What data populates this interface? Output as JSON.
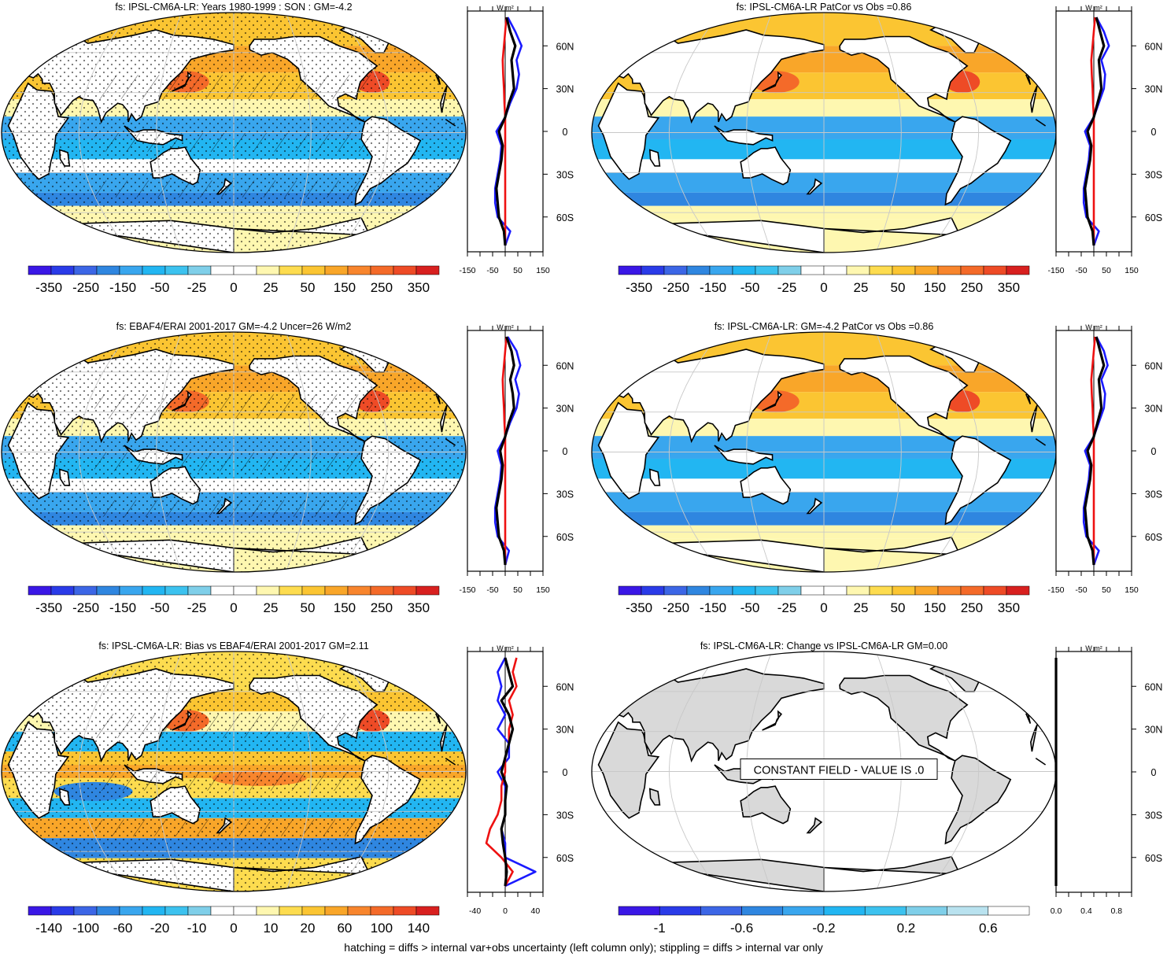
{
  "palettes": {
    "main": [
      "#3a17e6",
      "#2a3be8",
      "#3c66e6",
      "#2f86e0",
      "#39a6ee",
      "#22b6f2",
      "#3cc2ef",
      "#7fcfe9",
      "#ffffff",
      "#ffffff",
      "#fef7b0",
      "#fddc4f",
      "#fbc532",
      "#f9a629",
      "#f8852d",
      "#f46a29",
      "#ee4b26",
      "#d8201f"
    ],
    "bias": [
      "#3a17e6",
      "#2a3be8",
      "#3c66e6",
      "#2f86e0",
      "#39a6ee",
      "#22b6f2",
      "#3cc2ef",
      "#7fcfe9",
      "#ffffff",
      "#ffffff",
      "#fef7b0",
      "#fddc4f",
      "#fbc532",
      "#f9a629",
      "#f8852d",
      "#f46a29",
      "#ee4b26",
      "#d8201f"
    ],
    "change": [
      "#3a17e6",
      "#2a3be8",
      "#3c66e6",
      "#2f86e0",
      "#39a6ee",
      "#22b6f2",
      "#3cc2ef",
      "#7fcfe9",
      "#b9e2ef",
      "#ffffff"
    ],
    "land": "#d9d9d9",
    "line_black": "#000000",
    "line_blue": "#1a1aff",
    "line_red": "#ee1111"
  },
  "profile_units": "W m²",
  "footnote": "hatching = diffs > internal var+obs uncertainty (left column only); stippling = diffs > internal var only",
  "chart_data": [
    {
      "type": "heatmap",
      "title": "fs: IPSL-CM6A-LR: Years 1980-1999 : SON : GM=-4.2",
      "colorbar_labels": [
        "-350",
        "-250",
        "-150",
        "-50",
        "-25",
        "0",
        "25",
        "50",
        "150",
        "250",
        "350"
      ],
      "stippling": true,
      "hatching": true
    },
    {
      "type": "line",
      "ylabels": [
        "60N",
        "30N",
        "0",
        "30S",
        "60S"
      ],
      "y": [
        60,
        30,
        0,
        -30,
        -60
      ],
      "xlim": [
        -150,
        150
      ],
      "xticklabels": [
        "-150",
        "-50",
        "50",
        "150"
      ],
      "series": [
        {
          "color": "black",
          "lat": [
            80,
            70,
            60,
            50,
            40,
            30,
            20,
            10,
            0,
            -10,
            -20,
            -30,
            -40,
            -50,
            -60,
            -70,
            -80
          ],
          "values": [
            5,
            20,
            40,
            25,
            30,
            35,
            15,
            0,
            -25,
            -10,
            -15,
            -25,
            -35,
            -30,
            -25,
            -5,
            0
          ]
        },
        {
          "color": "blue",
          "lat": [
            80,
            70,
            60,
            50,
            40,
            30,
            20,
            10,
            0,
            -10,
            -20,
            -30,
            -40,
            -50,
            -60,
            -70,
            -80
          ],
          "values": [
            10,
            40,
            65,
            45,
            55,
            45,
            20,
            0,
            -35,
            -15,
            -20,
            -30,
            -40,
            -40,
            -30,
            20,
            0
          ]
        },
        {
          "color": "red",
          "lat": [
            80,
            70,
            60,
            50,
            40,
            30,
            20,
            10,
            0,
            -10,
            -20,
            -30,
            -40,
            -50,
            -60,
            -70,
            -80
          ],
          "values": [
            5,
            0,
            -5,
            -10,
            -8,
            -5,
            -3,
            0,
            0,
            0,
            0,
            0,
            0,
            0,
            0,
            0,
            0
          ]
        }
      ]
    },
    {
      "type": "heatmap",
      "title": "fs: IPSL-CM6A-LR PatCor vs Obs =0.86",
      "colorbar_labels": [
        "-350",
        "-250",
        "-150",
        "-50",
        "-25",
        "0",
        "25",
        "50",
        "150",
        "250",
        "350"
      ]
    },
    {
      "type": "line",
      "ylabels": [
        "60N",
        "30N",
        "0",
        "30S",
        "60S"
      ],
      "y": [
        60,
        30,
        0,
        -30,
        -60
      ],
      "xlim": [
        -150,
        150
      ],
      "xticklabels": [
        "-150",
        "-50",
        "50",
        "150"
      ],
      "series": [
        {
          "color": "black",
          "lat": [
            80,
            70,
            60,
            50,
            40,
            30,
            20,
            10,
            0,
            -10,
            -20,
            -30,
            -40,
            -50,
            -60,
            -70,
            -80
          ],
          "values": [
            10,
            25,
            40,
            20,
            25,
            30,
            15,
            0,
            -25,
            -10,
            -15,
            -25,
            -35,
            -30,
            -25,
            -5,
            0
          ]
        },
        {
          "color": "blue",
          "lat": [
            80,
            70,
            60,
            50,
            40,
            30,
            20,
            10,
            0,
            -10,
            -20,
            -30,
            -40,
            -50,
            -60,
            -70,
            -80
          ],
          "values": [
            10,
            40,
            60,
            30,
            45,
            40,
            20,
            0,
            -35,
            -15,
            -20,
            -30,
            -40,
            -40,
            -30,
            20,
            0
          ]
        },
        {
          "color": "red",
          "lat": [
            80,
            70,
            60,
            50,
            40,
            30,
            20,
            10,
            0,
            -10,
            -20,
            -30,
            -40,
            -50,
            -60,
            -70,
            -80
          ],
          "values": [
            5,
            0,
            -5,
            -10,
            -8,
            -5,
            -3,
            0,
            0,
            0,
            0,
            0,
            0,
            0,
            0,
            0,
            0
          ]
        }
      ]
    },
    {
      "type": "heatmap",
      "title": "fs: EBAF4/ERAI 2001-2017 GM=-4.2 Uncer=26 W/m2",
      "colorbar_labels": [
        "-350",
        "-250",
        "-150",
        "-50",
        "-25",
        "0",
        "25",
        "50",
        "150",
        "250",
        "350"
      ],
      "stippling": true,
      "hatching": true
    },
    {
      "type": "line",
      "ylabels": [
        "60N",
        "30N",
        "0",
        "30S",
        "60S"
      ],
      "y": [
        60,
        30,
        0,
        -30,
        -60
      ],
      "xlim": [
        -150,
        150
      ],
      "xticklabels": [
        "-150",
        "-50",
        "50",
        "150"
      ],
      "series": [
        {
          "color": "black",
          "lat": [
            80,
            70,
            60,
            50,
            40,
            30,
            20,
            10,
            0,
            -10,
            -20,
            -30,
            -40,
            -50,
            -60,
            -70,
            -80
          ],
          "values": [
            5,
            25,
            35,
            20,
            30,
            35,
            15,
            0,
            -20,
            -10,
            -15,
            -25,
            -35,
            -30,
            -25,
            -5,
            0
          ]
        },
        {
          "color": "blue",
          "lat": [
            80,
            70,
            60,
            50,
            40,
            30,
            20,
            10,
            0,
            -10,
            -20,
            -30,
            -40,
            -50,
            -60,
            -70,
            -80
          ],
          "values": [
            10,
            45,
            60,
            40,
            55,
            45,
            20,
            0,
            -30,
            -15,
            -20,
            -30,
            -40,
            -40,
            -30,
            15,
            0
          ]
        },
        {
          "color": "red",
          "lat": [
            80,
            70,
            60,
            50,
            40,
            30,
            20,
            10,
            0,
            -10,
            -20,
            -30,
            -40,
            -50,
            -60,
            -70,
            -80
          ],
          "values": [
            5,
            0,
            -5,
            -10,
            -8,
            -5,
            -3,
            0,
            0,
            0,
            0,
            0,
            0,
            0,
            0,
            0,
            0
          ]
        }
      ]
    },
    {
      "type": "heatmap",
      "title": "fs: IPSL-CM6A-LR: GM=-4.2 PatCor vs Obs =0.86",
      "colorbar_labels": [
        "-350",
        "-250",
        "-150",
        "-50",
        "-25",
        "0",
        "25",
        "50",
        "150",
        "250",
        "350"
      ]
    },
    {
      "type": "line",
      "ylabels": [
        "60N",
        "30N",
        "0",
        "30S",
        "60S"
      ],
      "y": [
        60,
        30,
        0,
        -30,
        -60
      ],
      "xlim": [
        -150,
        150
      ],
      "xticklabels": [
        "-150",
        "-50",
        "50",
        "150"
      ],
      "series": [
        {
          "color": "black",
          "lat": [
            80,
            70,
            60,
            50,
            40,
            30,
            20,
            10,
            0,
            -10,
            -20,
            -30,
            -40,
            -50,
            -60,
            -70,
            -80
          ],
          "values": [
            10,
            25,
            40,
            20,
            25,
            30,
            15,
            0,
            -25,
            -10,
            -15,
            -25,
            -35,
            -30,
            -25,
            -5,
            0
          ]
        },
        {
          "color": "blue",
          "lat": [
            80,
            70,
            60,
            50,
            40,
            30,
            20,
            10,
            0,
            -10,
            -20,
            -30,
            -40,
            -50,
            -60,
            -70,
            -80
          ],
          "values": [
            10,
            40,
            55,
            30,
            45,
            40,
            20,
            0,
            -35,
            -15,
            -20,
            -30,
            -40,
            -40,
            -30,
            20,
            0
          ]
        },
        {
          "color": "red",
          "lat": [
            80,
            70,
            60,
            50,
            40,
            30,
            20,
            10,
            0,
            -10,
            -20,
            -30,
            -40,
            -50,
            -60,
            -70,
            -80
          ],
          "values": [
            5,
            0,
            -5,
            -10,
            -8,
            -5,
            -3,
            0,
            0,
            0,
            0,
            0,
            0,
            0,
            0,
            0,
            0
          ]
        }
      ]
    },
    {
      "type": "heatmap",
      "title": "fs: IPSL-CM6A-LR: Bias vs EBAF4/ERAI 2001-2017  GM=2.11",
      "colorbar_labels": [
        "-140",
        "-100",
        "-60",
        "-20",
        "-10",
        "0",
        "10",
        "20",
        "60",
        "100",
        "140"
      ],
      "stippling": true,
      "hatching": true
    },
    {
      "type": "line",
      "ylabels": [
        "60N",
        "30N",
        "0",
        "30S",
        "60S"
      ],
      "y": [
        60,
        30,
        0,
        -30,
        -60
      ],
      "xlim": [
        -50,
        50
      ],
      "xticklabels": [
        "-40",
        "0",
        "40"
      ],
      "series": [
        {
          "color": "black",
          "lat": [
            80,
            70,
            60,
            50,
            40,
            30,
            20,
            10,
            0,
            -10,
            -20,
            -30,
            -40,
            -50,
            -60,
            -70,
            -80
          ],
          "values": [
            0,
            5,
            10,
            -5,
            5,
            10,
            5,
            0,
            -5,
            2,
            0,
            0,
            -5,
            -3,
            0,
            2,
            0
          ]
        },
        {
          "color": "blue",
          "lat": [
            80,
            70,
            60,
            50,
            40,
            30,
            20,
            10,
            0,
            -10,
            -20,
            -30,
            -40,
            -50,
            -60,
            -70,
            -80
          ],
          "values": [
            0,
            -10,
            -5,
            -10,
            0,
            -10,
            5,
            5,
            -10,
            0,
            0,
            0,
            -5,
            0,
            0,
            40,
            0
          ]
        },
        {
          "color": "red",
          "lat": [
            80,
            70,
            60,
            50,
            40,
            30,
            20,
            10,
            0,
            -10,
            -20,
            -30,
            -40,
            -50,
            -60,
            -70,
            -80
          ],
          "values": [
            15,
            10,
            15,
            5,
            10,
            5,
            5,
            0,
            0,
            -5,
            -5,
            -10,
            -20,
            -25,
            -5,
            10,
            0
          ]
        }
      ]
    },
    {
      "type": "heatmap",
      "title": "fs: IPSL-CM6A-LR: Change vs IPSL-CM6A-LR GM=0.00",
      "colorbar_labels": [
        "-1",
        "-0.6",
        "-0.2",
        "0.2",
        "0.6"
      ],
      "annotation": "CONSTANT FIELD - VALUE IS .0"
    },
    {
      "type": "line",
      "ylabels": [
        "60N",
        "30N",
        "0",
        "30S",
        "60S"
      ],
      "y": [
        60,
        30,
        0,
        -30,
        -60
      ],
      "xlim": [
        0,
        1
      ],
      "xticklabels": [
        "0.0",
        "0.4",
        "0.8"
      ],
      "series": [
        {
          "color": "black",
          "lat": [
            80,
            -80
          ],
          "values": [
            0,
            0
          ]
        }
      ]
    }
  ]
}
